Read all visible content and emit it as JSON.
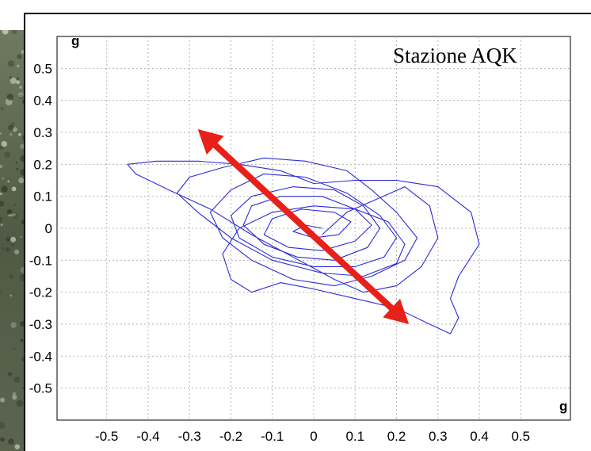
{
  "chart_data": {
    "type": "line",
    "title": "",
    "station_label": "Stazione AQK",
    "x_unit": "g",
    "y_unit": "g",
    "xlim": [
      -0.62,
      0.62
    ],
    "ylim": [
      -0.6,
      0.6
    ],
    "xticks": [
      -0.5,
      -0.4,
      -0.3,
      -0.2,
      -0.1,
      0,
      0.1,
      0.2,
      0.3,
      0.4,
      0.5
    ],
    "yticks": [
      0.5,
      0.4,
      0.3,
      0.2,
      0.1,
      0,
      -0.1,
      -0.2,
      -0.3,
      -0.4,
      -0.5
    ],
    "xtick_labels": [
      "-0.5",
      "-0.4",
      "-0.3",
      "-0.2",
      "-0.1",
      "0",
      "0.1",
      "0.2",
      "0.3",
      "0.4",
      "0.5"
    ],
    "ytick_labels": [
      "0.5",
      "0.4",
      "0.3",
      "0.2",
      "0.1",
      "0",
      "-0.1",
      "-0.2",
      "-0.3",
      "-0.4",
      "-0.5"
    ],
    "grid": true,
    "series": [
      {
        "color": "#2b2bd6",
        "x": [
          0.02,
          0.08,
          0.15,
          0.22,
          0.28,
          0.3,
          0.26,
          0.2,
          0.12,
          0.05,
          -0.05,
          -0.15,
          -0.25,
          -0.35,
          -0.43,
          -0.45,
          -0.38,
          -0.28,
          -0.18,
          -0.08,
          0.0,
          0.1,
          0.2,
          0.3,
          0.38,
          0.4,
          0.35,
          0.33,
          0.35,
          0.33,
          0.28,
          0.2,
          0.1,
          0.0,
          -0.08,
          -0.15,
          -0.2,
          -0.22,
          -0.18,
          -0.1,
          0.0,
          0.1,
          0.18,
          0.22,
          0.2,
          0.12,
          0.02,
          -0.1,
          -0.2,
          -0.28,
          -0.33,
          -0.3,
          -0.22,
          -0.12,
          -0.02,
          0.08,
          0.14,
          0.2,
          0.25,
          0.22,
          0.14,
          0.05,
          -0.05,
          -0.15,
          -0.22,
          -0.25,
          -0.2,
          -0.12,
          -0.02,
          0.08,
          0.16,
          0.2,
          0.17,
          0.1,
          0.0,
          -0.1,
          -0.18,
          -0.2,
          -0.15,
          -0.05,
          0.05,
          0.12,
          0.16,
          0.13,
          0.05,
          -0.04,
          -0.12,
          -0.17,
          -0.15,
          -0.08,
          0.02,
          0.1,
          0.14,
          0.1,
          0.02,
          -0.06,
          -0.12,
          -0.1,
          -0.03,
          0.05,
          0.09,
          0.06,
          0.0,
          -0.05,
          -0.02,
          0.02
        ],
        "y": [
          -0.02,
          0.05,
          0.09,
          0.13,
          0.07,
          -0.03,
          -0.12,
          -0.18,
          -0.2,
          -0.16,
          -0.09,
          -0.02,
          0.06,
          0.12,
          0.17,
          0.2,
          0.21,
          0.21,
          0.2,
          0.18,
          0.14,
          0.15,
          0.15,
          0.13,
          0.05,
          -0.05,
          -0.15,
          -0.22,
          -0.28,
          -0.33,
          -0.3,
          -0.25,
          -0.22,
          -0.19,
          -0.17,
          -0.2,
          -0.16,
          -0.08,
          0.0,
          0.05,
          0.07,
          0.06,
          0.02,
          -0.05,
          -0.11,
          -0.15,
          -0.14,
          -0.1,
          -0.03,
          0.05,
          0.11,
          0.16,
          0.19,
          0.22,
          0.21,
          0.18,
          0.12,
          0.05,
          -0.03,
          -0.1,
          -0.15,
          -0.18,
          -0.16,
          -0.1,
          -0.03,
          0.05,
          0.12,
          0.17,
          0.16,
          0.11,
          0.04,
          -0.03,
          -0.09,
          -0.12,
          -0.12,
          -0.09,
          -0.03,
          0.04,
          0.1,
          0.13,
          0.12,
          0.07,
          0.0,
          -0.06,
          -0.1,
          -0.09,
          -0.05,
          0.01,
          0.07,
          0.1,
          0.1,
          0.06,
          0.01,
          -0.04,
          -0.07,
          -0.06,
          -0.02,
          0.03,
          0.06,
          0.05,
          0.02,
          -0.02,
          -0.03,
          -0.01,
          0.01,
          0.0
        ]
      }
    ],
    "arrow": {
      "from": [
        -0.28,
        0.31
      ],
      "to": [
        0.23,
        -0.3
      ],
      "color": "#e8201a",
      "style": "double-headed"
    }
  }
}
